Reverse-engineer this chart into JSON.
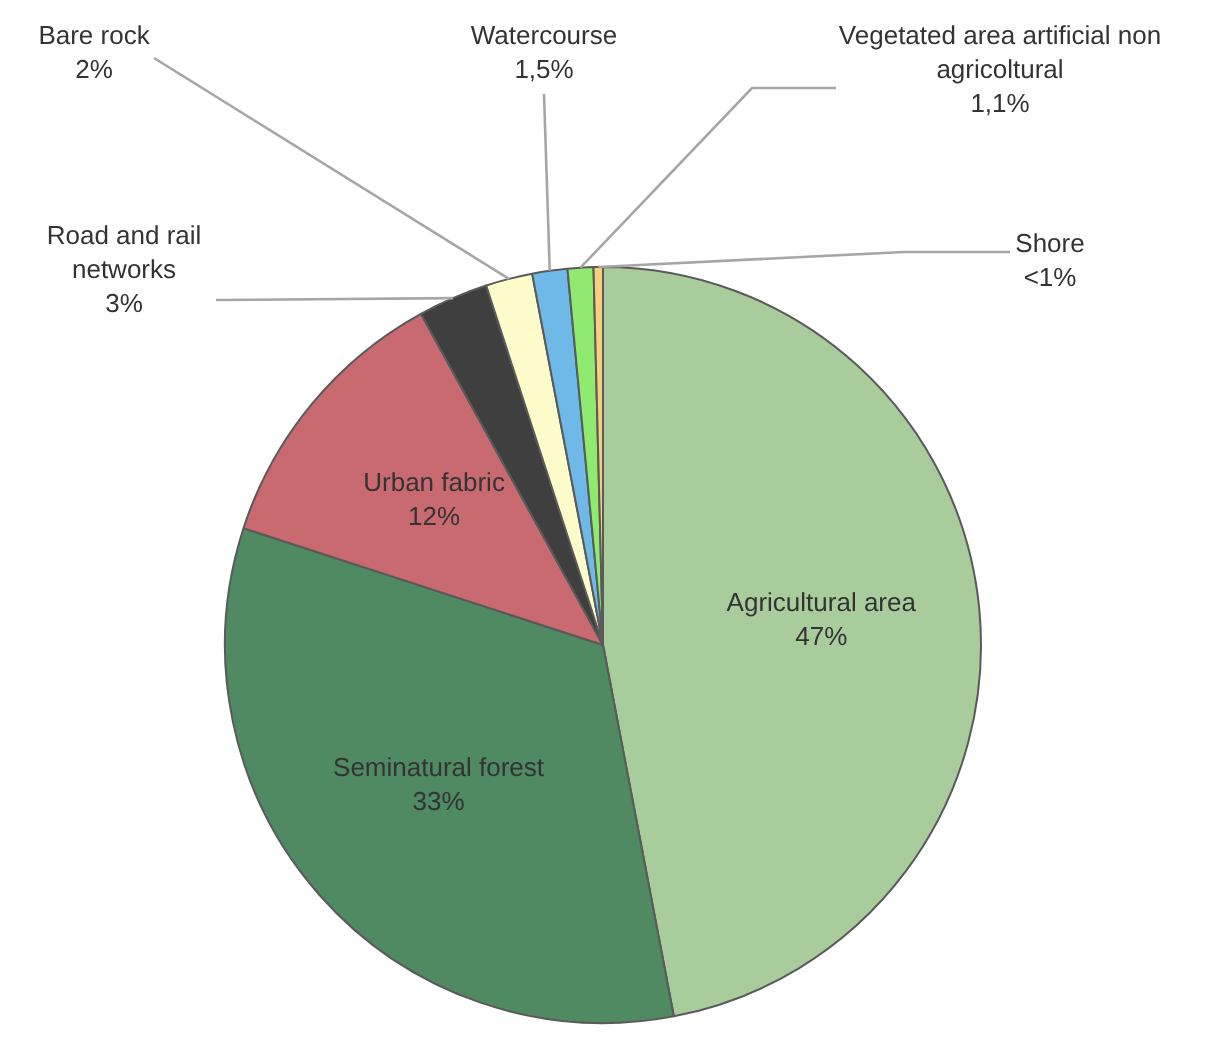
{
  "chart_data": {
    "type": "pie",
    "categories": [
      "Agricultural area",
      "Seminatural forest",
      "Urban fabric",
      "Road and rail networks",
      "Bare rock",
      "Watercourse",
      "Vegetated area artificial non agricoltural",
      "Shore"
    ],
    "values": [
      47,
      33,
      12,
      3,
      2,
      1.5,
      1.1,
      0.4
    ],
    "value_labels": [
      "47%",
      "33%",
      "12%",
      "3%",
      "2%",
      "1,5%",
      "1,1%",
      "<1%"
    ],
    "colors": [
      "#a9cc9c",
      "#4f8a62",
      "#c96a70",
      "#3f3f3f",
      "#fffccc",
      "#6fb9e8",
      "#8fea6f",
      "#f7cf7d"
    ],
    "legend": false
  }
}
